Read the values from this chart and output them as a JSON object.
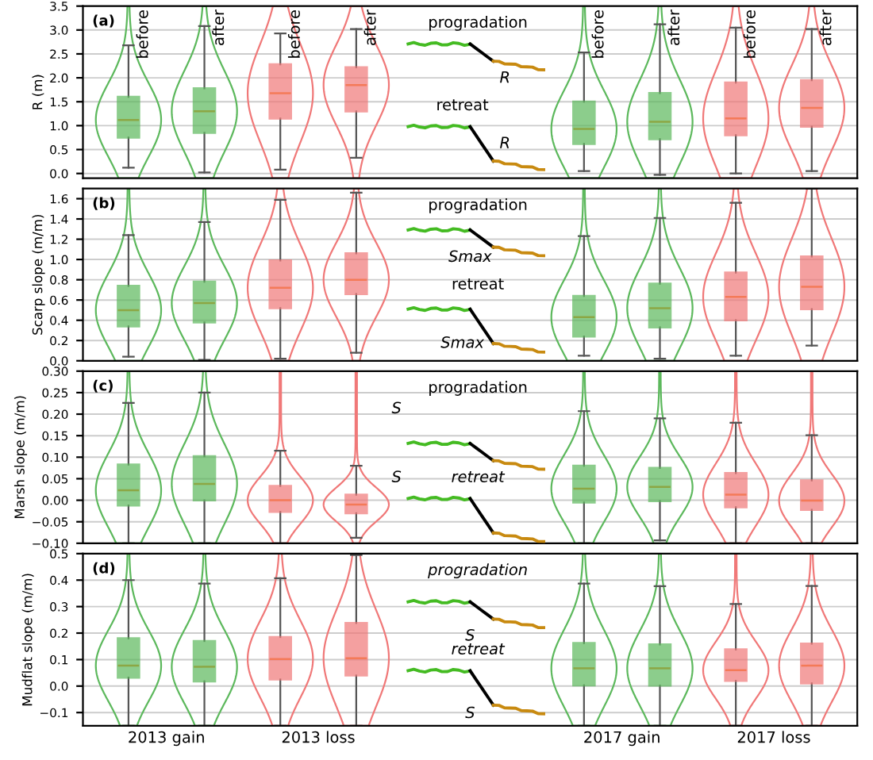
{
  "chart_data": [
    {
      "type": "box",
      "title": "(a)",
      "ylabel": "R (m)",
      "categories": [
        "before",
        "after",
        "before",
        "after",
        null,
        null,
        "before",
        "after",
        "before",
        "after"
      ],
      "colors": [
        "#5cb85c",
        "#5cb85c",
        "#f07878",
        "#f07878",
        null,
        null,
        "#5cb85c",
        "#5cb85c",
        "#f07878",
        "#f07878"
      ],
      "boxes": [
        {
          "low": 0.12,
          "q1": 0.75,
          "median": 1.12,
          "q3": 1.6,
          "high": 2.68
        },
        {
          "low": 0.02,
          "q1": 0.85,
          "median": 1.3,
          "q3": 1.78,
          "high": 3.08
        },
        {
          "low": 0.08,
          "q1": 1.15,
          "median": 1.68,
          "q3": 2.28,
          "high": 2.93
        },
        {
          "low": 0.33,
          "q1": 1.3,
          "median": 1.85,
          "q3": 2.22,
          "high": 3.02
        },
        null,
        null,
        {
          "low": 0.05,
          "q1": 0.62,
          "median": 0.93,
          "q3": 1.5,
          "high": 2.53
        },
        {
          "low": -0.03,
          "q1": 0.72,
          "median": 1.08,
          "q3": 1.68,
          "high": 3.12
        },
        {
          "low": 0.0,
          "q1": 0.8,
          "median": 1.15,
          "q3": 1.9,
          "high": 3.05
        },
        {
          "low": 0.05,
          "q1": 0.98,
          "median": 1.37,
          "q3": 1.95,
          "high": 3.02
        }
      ],
      "ylim": [
        -0.1,
        3.5
      ],
      "yticks": [
        {
          "value": 0,
          "label": "0.0"
        },
        0.5,
        {
          "value": 1,
          "label": "1.0"
        },
        1.5,
        {
          "value": 2,
          "label": "2.0"
        },
        2.5,
        {
          "value": 3,
          "label": "3.0"
        },
        3.5
      ],
      "annotations": [
        "progradation",
        "R",
        "retreat",
        "R"
      ],
      "grid": "y",
      "legend": false
    },
    {
      "type": "box",
      "title": "(b)",
      "ylabel": "Scarp slope (m/m)",
      "categories": [
        null,
        null,
        null,
        null,
        null,
        null,
        null,
        null,
        null,
        null
      ],
      "colors": [
        "#5cb85c",
        "#5cb85c",
        "#f07878",
        "#f07878",
        null,
        null,
        "#5cb85c",
        "#5cb85c",
        "#f07878",
        "#f07878"
      ],
      "boxes": [
        {
          "low": 0.04,
          "q1": 0.34,
          "median": 0.5,
          "q3": 0.74,
          "high": 1.24
        },
        {
          "low": 0.01,
          "q1": 0.38,
          "median": 0.57,
          "q3": 0.78,
          "high": 1.37
        },
        {
          "low": 0.02,
          "q1": 0.52,
          "median": 0.72,
          "q3": 0.99,
          "high": 1.59
        },
        {
          "low": 0.08,
          "q1": 0.66,
          "median": 0.8,
          "q3": 1.06,
          "high": 1.66
        },
        null,
        null,
        {
          "low": 0.05,
          "q1": 0.24,
          "median": 0.43,
          "q3": 0.64,
          "high": 1.23
        },
        {
          "low": 0.02,
          "q1": 0.33,
          "median": 0.52,
          "q3": 0.76,
          "high": 1.41
        },
        {
          "low": 0.05,
          "q1": 0.4,
          "median": 0.63,
          "q3": 0.87,
          "high": 1.56
        },
        {
          "low": 0.15,
          "q1": 0.51,
          "median": 0.73,
          "q3": 1.03,
          "high": 1.7
        }
      ],
      "ylim": [
        0,
        1.7
      ],
      "yticks": [
        {
          "value": 0,
          "label": "0.0"
        },
        0.2,
        0.4,
        0.6,
        0.8,
        {
          "value": 1,
          "label": "1.0"
        },
        1.2,
        1.4,
        1.6
      ],
      "annotations": [
        "progradation",
        "Smax",
        "retreat",
        "Smax"
      ],
      "grid": "y",
      "legend": false,
      "tick_labels": "y"
    },
    {
      "type": "box",
      "title": "(c)",
      "ylabel": "Marsh slope (m/m)",
      "categories": [
        null,
        null,
        null,
        null,
        null,
        null,
        null,
        null,
        null,
        null
      ],
      "colors": [
        "#5cb85c",
        "#5cb85c",
        "#f07878",
        "#f07878",
        null,
        null,
        "#5cb85c",
        "#5cb85c",
        "#f07878",
        "#f07878"
      ],
      "boxes": [
        {
          "low": -0.1,
          "q1": -0.012,
          "median": 0.023,
          "q3": 0.083,
          "high": 0.226
        },
        {
          "low": -0.1,
          "q1": 0.0,
          "median": 0.038,
          "q3": 0.102,
          "high": 0.25
        },
        {
          "low": -0.1,
          "q1": -0.027,
          "median": 0.0,
          "q3": 0.033,
          "high": 0.115
        },
        {
          "low": -0.087,
          "q1": -0.03,
          "median": -0.01,
          "q3": 0.013,
          "high": 0.08
        },
        null,
        null,
        {
          "low": -0.1,
          "q1": -0.005,
          "median": 0.027,
          "q3": 0.08,
          "high": 0.207
        },
        {
          "low": -0.093,
          "q1": -0.002,
          "median": 0.031,
          "q3": 0.075,
          "high": 0.19
        },
        {
          "low": -0.1,
          "q1": -0.016,
          "median": 0.013,
          "q3": 0.063,
          "high": 0.18
        },
        {
          "low": -0.1,
          "q1": -0.022,
          "median": -0.001,
          "q3": 0.046,
          "high": 0.151
        }
      ],
      "ylim": [
        -0.1,
        0.3
      ],
      "yticks": [
        {
          "value": -0.1,
          "label": "−0.10"
        },
        {
          "value": -0.05,
          "label": "−0.05"
        },
        {
          "value": 0,
          "label": "0.00"
        },
        {
          "value": 0.05,
          "label": "0.05"
        },
        {
          "value": 0.1,
          "label": "0.10"
        },
        {
          "value": 0.15,
          "label": "0.15"
        },
        {
          "value": 0.2,
          "label": "0.20"
        },
        {
          "value": 0.25,
          "label": "0.25"
        },
        {
          "value": 0.3,
          "label": "0.30"
        }
      ],
      "annotations": [
        "progradation",
        "S",
        "retreat",
        "S"
      ],
      "grid": "y",
      "legend": false,
      "tick_labels": "y"
    },
    {
      "type": "box",
      "title": "(d)",
      "ylabel": "Mudflat slope (m/m)",
      "categories": [
        null,
        null,
        null,
        null,
        null,
        null,
        null,
        null,
        null,
        null
      ],
      "colors": [
        "#5cb85c",
        "#5cb85c",
        "#f07878",
        "#f07878",
        null,
        null,
        "#5cb85c",
        "#5cb85c",
        "#f07878",
        "#f07878"
      ],
      "boxes": [
        {
          "low": -0.15,
          "q1": 0.032,
          "median": 0.077,
          "q3": 0.18,
          "high": 0.4
        },
        {
          "low": -0.15,
          "q1": 0.018,
          "median": 0.073,
          "q3": 0.17,
          "high": 0.387
        },
        {
          "low": -0.15,
          "q1": 0.025,
          "median": 0.102,
          "q3": 0.185,
          "high": 0.407
        },
        {
          "low": -0.15,
          "q1": 0.04,
          "median": 0.105,
          "q3": 0.238,
          "high": 0.495
        },
        null,
        null,
        {
          "low": -0.15,
          "q1": 0.003,
          "median": 0.067,
          "q3": 0.162,
          "high": 0.387
        },
        {
          "low": -0.15,
          "q1": 0.002,
          "median": 0.067,
          "q3": 0.157,
          "high": 0.377
        },
        {
          "low": -0.15,
          "q1": 0.02,
          "median": 0.06,
          "q3": 0.138,
          "high": 0.31
        },
        {
          "low": -0.15,
          "q1": 0.01,
          "median": 0.077,
          "q3": 0.16,
          "high": 0.378
        }
      ],
      "ylim": [
        -0.15,
        0.5
      ],
      "yticks": [
        {
          "value": -0.1,
          "label": "−0.1"
        },
        {
          "value": 0,
          "label": "0.0"
        },
        0.1,
        0.2,
        0.3,
        0.4,
        0.5
      ],
      "annotations": [
        "progradation",
        "S",
        "retreat",
        "S",
        "2013 gain",
        "2013 loss",
        "2017 gain",
        "2017 loss"
      ],
      "grid": "y",
      "legend": false,
      "tick_labels": "y"
    }
  ]
}
